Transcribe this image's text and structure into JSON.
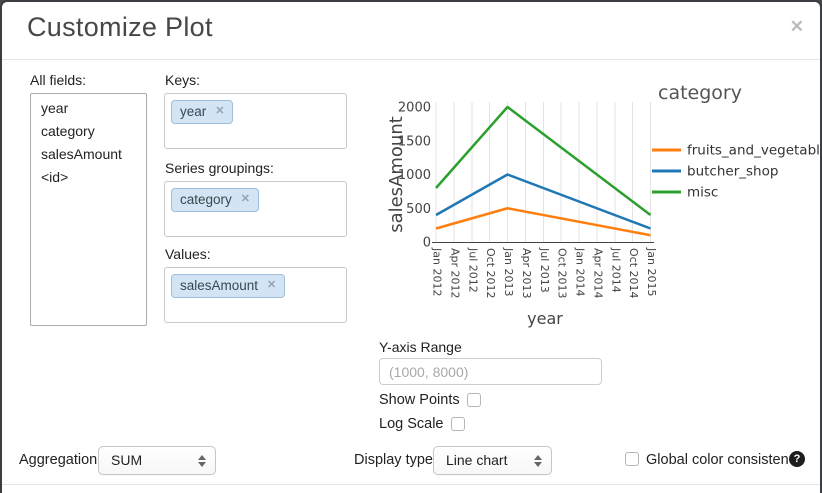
{
  "dialog": {
    "title": "Customize Plot",
    "close_glyph": "✕"
  },
  "fields_panel": {
    "label": "All fields:",
    "items": [
      "year",
      "category",
      "salesAmount",
      "<id>"
    ]
  },
  "keys_section": {
    "label": "Keys:",
    "tags": [
      {
        "label": "year",
        "remove_glyph": "✕"
      }
    ]
  },
  "series_section": {
    "label": "Series groupings:",
    "tags": [
      {
        "label": "category",
        "remove_glyph": "✕"
      }
    ]
  },
  "values_section": {
    "label": "Values:",
    "tags": [
      {
        "label": "salesAmount",
        "remove_glyph": "✕"
      }
    ]
  },
  "chart_data": {
    "type": "line",
    "title": "",
    "xlabel": "year",
    "ylabel": "salesAmount",
    "x_ticks": [
      "Jan 2012",
      "Apr 2012",
      "Jul 2012",
      "Oct 2012",
      "Jan 2013",
      "Apr 2013",
      "Jul 2013",
      "Oct 2013",
      "Jan 2014",
      "Apr 2014",
      "Jul 2014",
      "Oct 2014",
      "Jan 2015"
    ],
    "y_ticks": [
      0,
      500,
      1000,
      1500,
      2000
    ],
    "ylim": [
      0,
      2000
    ],
    "grid": "vertical-only",
    "legend_title": "category",
    "legend_position": "right",
    "series": [
      {
        "name": "fruits_and_vegetables",
        "color": "#ff7f0e",
        "points": [
          [
            "Jan 2012",
            200
          ],
          [
            "Jan 2013",
            500
          ],
          [
            "Jan 2015",
            100
          ]
        ]
      },
      {
        "name": "butcher_shop",
        "color": "#1f77b4",
        "points": [
          [
            "Jan 2012",
            400
          ],
          [
            "Jan 2013",
            1000
          ],
          [
            "Jan 2015",
            200
          ]
        ]
      },
      {
        "name": "misc",
        "color": "#2ca02c",
        "points": [
          [
            "Jan 2012",
            800
          ],
          [
            "Jan 2013",
            2000
          ],
          [
            "Jan 2015",
            400
          ]
        ]
      }
    ],
    "colors": {
      "grid": "#e3e3e3",
      "axis": "#444444",
      "tick_text": "#444444"
    }
  },
  "options": {
    "y_axis_range_label": "Y-axis Range",
    "y_axis_range_placeholder": "(1000, 8000)",
    "y_axis_range_value": "",
    "show_points_label": "Show Points",
    "show_points_checked": false,
    "log_scale_label": "Log Scale",
    "log_scale_checked": false
  },
  "footer": {
    "aggregation_label": "Aggregation:",
    "aggregation_value": "SUM",
    "display_type_label": "Display type:",
    "display_type_value": "Line chart",
    "global_color_label": "Global color consistency",
    "global_color_checked": false,
    "help_glyph": "?"
  }
}
